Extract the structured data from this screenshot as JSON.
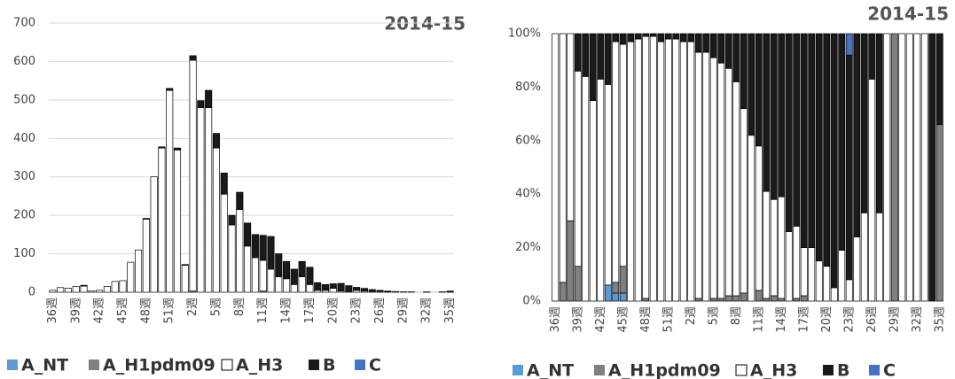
{
  "chart_data": [
    {
      "type": "bar",
      "stacked": true,
      "title": "2014-15",
      "grid": true,
      "categories": [
        "36週",
        null,
        null,
        "39週",
        null,
        null,
        "42週",
        null,
        null,
        "45週",
        null,
        null,
        "48週",
        null,
        null,
        "51週",
        null,
        null,
        "2週",
        null,
        null,
        "5週",
        null,
        null,
        "8週",
        null,
        null,
        "11週",
        null,
        null,
        "14週",
        null,
        null,
        "17週",
        null,
        null,
        "20週",
        null,
        null,
        "23週",
        null,
        null,
        "26週",
        null,
        null,
        "29週",
        null,
        null,
        "32週",
        null,
        null,
        "35週"
      ],
      "ylim": [
        0,
        700
      ],
      "yticks": [
        0,
        100,
        200,
        300,
        400,
        500,
        600,
        700
      ],
      "series": [
        {
          "name": "A_NT",
          "color": "#5b9bd5",
          "values": [
            0,
            0,
            0,
            0,
            0,
            0,
            0,
            0,
            0,
            0,
            0,
            0,
            0,
            0,
            0,
            0,
            0,
            0,
            3,
            0,
            0,
            0,
            0,
            0,
            0,
            0,
            0,
            0,
            0,
            0,
            0,
            0,
            0,
            0,
            0,
            0,
            0,
            0,
            0,
            0,
            0,
            0,
            0,
            0,
            0,
            0,
            0,
            0,
            0,
            0,
            0,
            0
          ]
        },
        {
          "name": "A_H1pdm09",
          "color": "#808080",
          "values": [
            0,
            0,
            0,
            0,
            0,
            0,
            0,
            0,
            0,
            0,
            0,
            0,
            0,
            0,
            0,
            0,
            0,
            0,
            0,
            0,
            0,
            0,
            0,
            0,
            0,
            0,
            0,
            3,
            0,
            0,
            0,
            0,
            0,
            0,
            0,
            0,
            0,
            0,
            0,
            0,
            0,
            0,
            0,
            0,
            0,
            0,
            0,
            0,
            0,
            0,
            0,
            0
          ]
        },
        {
          "name": "A_H3",
          "color": "#ffffff",
          "values": [
            5,
            12,
            10,
            15,
            16,
            3,
            5,
            15,
            28,
            30,
            78,
            110,
            190,
            300,
            375,
            525,
            370,
            70,
            600,
            480,
            480,
            375,
            255,
            175,
            215,
            120,
            90,
            80,
            60,
            40,
            35,
            20,
            40,
            20,
            5,
            5,
            10,
            3,
            2,
            5,
            3,
            2,
            2,
            1,
            2,
            0,
            0,
            0,
            0,
            0,
            0,
            0
          ]
        },
        {
          "name": "B",
          "color": "#1a1a1a",
          "values": [
            0,
            0,
            0,
            0,
            2,
            0,
            0,
            0,
            0,
            0,
            0,
            0,
            2,
            0,
            3,
            5,
            5,
            2,
            12,
            18,
            45,
            38,
            55,
            25,
            45,
            60,
            60,
            65,
            85,
            60,
            45,
            40,
            40,
            45,
            20,
            15,
            12,
            20,
            15,
            5,
            7,
            5,
            3,
            2,
            0,
            1,
            1,
            0,
            1,
            0,
            1,
            3
          ]
        },
        {
          "name": "C",
          "color": "#4472c4",
          "values": [
            0,
            0,
            0,
            0,
            0,
            0,
            0,
            0,
            0,
            0,
            0,
            0,
            0,
            0,
            0,
            0,
            0,
            0,
            0,
            0,
            0,
            0,
            0,
            0,
            0,
            0,
            0,
            0,
            0,
            0,
            0,
            0,
            0,
            0,
            0,
            0,
            0,
            0,
            0,
            3,
            0,
            0,
            0,
            0,
            0,
            0,
            0,
            0,
            0,
            0,
            0,
            0
          ]
        }
      ]
    },
    {
      "type": "bar",
      "stacked": true,
      "title": "2014-15",
      "grid": false,
      "categories": [
        "36週",
        null,
        null,
        "39週",
        null,
        null,
        "42週",
        null,
        null,
        "45週",
        null,
        null,
        "48週",
        null,
        null,
        "51週",
        null,
        null,
        "2週",
        null,
        null,
        "5週",
        null,
        null,
        "8週",
        null,
        null,
        "11週",
        null,
        null,
        "14週",
        null,
        null,
        "17週",
        null,
        null,
        "20週",
        null,
        null,
        "23週",
        null,
        null,
        "26週",
        null,
        null,
        "29週",
        null,
        null,
        "32週",
        null,
        null,
        "35週"
      ],
      "ylim": [
        0,
        100
      ],
      "yticks": [
        {
          "value": 0,
          "label": "0%"
        },
        {
          "value": 20,
          "label": "20%"
        },
        {
          "value": 40,
          "label": "40%"
        },
        {
          "value": 60,
          "label": "60%"
        },
        {
          "value": 80,
          "label": "80%"
        },
        {
          "value": 100,
          "label": "100%"
        }
      ],
      "series": [
        {
          "name": "A_NT",
          "color": "#5b9bd5",
          "values": [
            0,
            0,
            0,
            0,
            0,
            0,
            0,
            6,
            3,
            3,
            0,
            0,
            0,
            0,
            0,
            0,
            0,
            0,
            0,
            0,
            0,
            0,
            0,
            0,
            0,
            0,
            0,
            0,
            0,
            0,
            0,
            0,
            0,
            0,
            0,
            0,
            0,
            0,
            0,
            0,
            0,
            0,
            0,
            0,
            0,
            0,
            0,
            0,
            0,
            0,
            0,
            0
          ]
        },
        {
          "name": "A_H1pdm09",
          "color": "#808080",
          "values": [
            0,
            7,
            30,
            13,
            0,
            0,
            0,
            0,
            4,
            10,
            0,
            0,
            1,
            0,
            0,
            0,
            0,
            0,
            0,
            1,
            0,
            1,
            1,
            2,
            2,
            3,
            0,
            4,
            1,
            2,
            1,
            0,
            1,
            2,
            0,
            0,
            0,
            0,
            0,
            0,
            0,
            0,
            0,
            0,
            0,
            100,
            0,
            0,
            0,
            0,
            0,
            66
          ]
        },
        {
          "name": "A_H3",
          "color": "#ffffff",
          "values": [
            100,
            93,
            70,
            73,
            84,
            75,
            83,
            75,
            90,
            83,
            97,
            98,
            98,
            99,
            97,
            98,
            98,
            97,
            97,
            92,
            93,
            90,
            88,
            85,
            80,
            69,
            62,
            54,
            40,
            36,
            38,
            26,
            27,
            18,
            20,
            15,
            13,
            5,
            19,
            8,
            24,
            33,
            83,
            33,
            100,
            0,
            100,
            100,
            100,
            100,
            0,
            0
          ]
        },
        {
          "name": "B",
          "color": "#1a1a1a",
          "values": [
            0,
            0,
            0,
            14,
            16,
            25,
            17,
            19,
            3,
            4,
            3,
            2,
            1,
            1,
            3,
            2,
            2,
            3,
            3,
            7,
            7,
            9,
            11,
            13,
            18,
            28,
            38,
            42,
            59,
            62,
            61,
            74,
            72,
            80,
            80,
            85,
            87,
            95,
            81,
            84,
            76,
            67,
            17,
            67,
            0,
            0,
            0,
            0,
            0,
            0,
            100,
            34
          ]
        },
        {
          "name": "C",
          "color": "#4472c4",
          "values": [
            0,
            0,
            0,
            0,
            0,
            0,
            0,
            0,
            0,
            0,
            0,
            0,
            0,
            0,
            0,
            0,
            0,
            0,
            0,
            0,
            0,
            0,
            0,
            0,
            0,
            0,
            0,
            0,
            0,
            0,
            0,
            0,
            0,
            0,
            0,
            0,
            0,
            0,
            0,
            8,
            0,
            0,
            0,
            0,
            0,
            0,
            0,
            0,
            0,
            0,
            0,
            0
          ]
        }
      ]
    }
  ]
}
